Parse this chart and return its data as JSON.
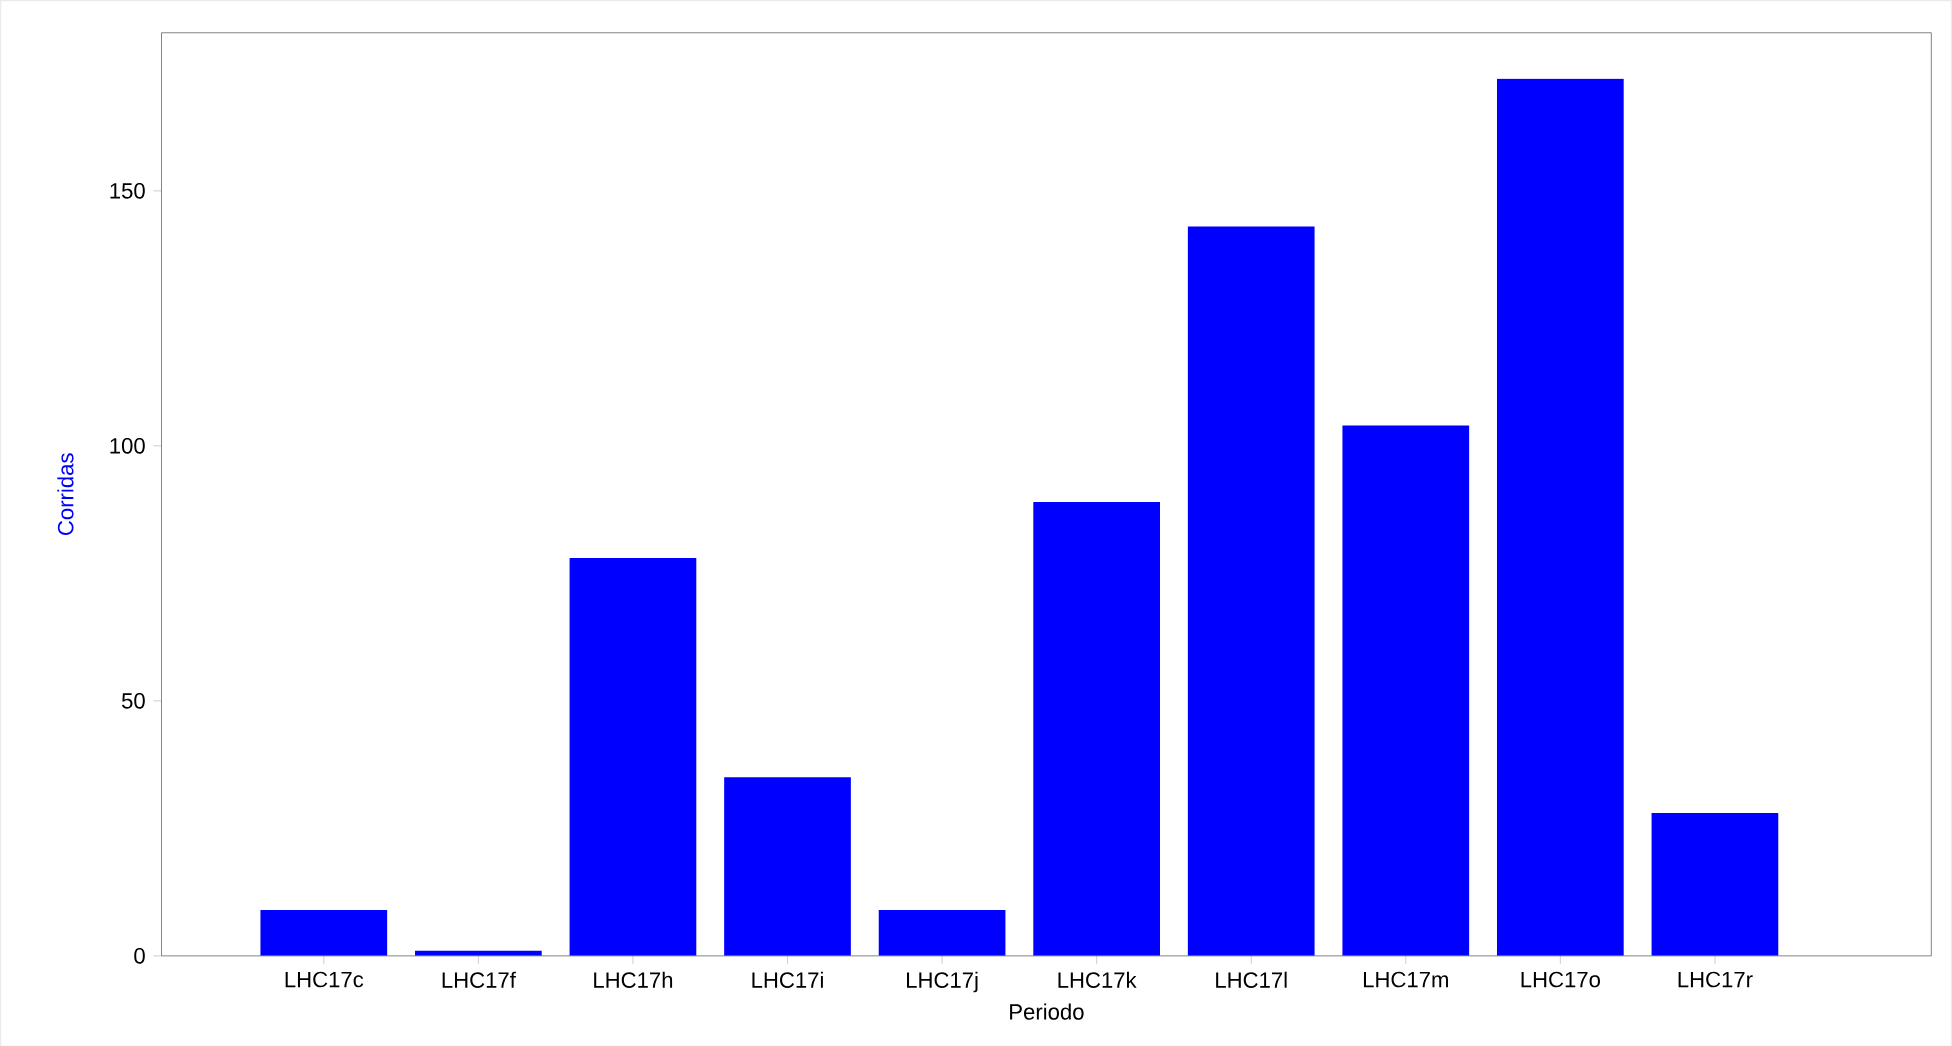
{
  "chart_data": {
    "type": "bar",
    "xlabel": "Periodo",
    "ylabel": "Corridas",
    "categories": [
      "LHC17c",
      "LHC17f",
      "LHC17h",
      "LHC17i",
      "LHC17j",
      "LHC17k",
      "LHC17l",
      "LHC17m",
      "LHC17o",
      "LHC17r"
    ],
    "values": [
      9,
      1,
      78,
      35,
      9,
      89,
      143,
      104,
      172,
      28
    ],
    "color": "#0000ff",
    "ylim": [
      0,
      181
    ],
    "yticks": [
      0,
      50,
      100,
      150
    ]
  }
}
